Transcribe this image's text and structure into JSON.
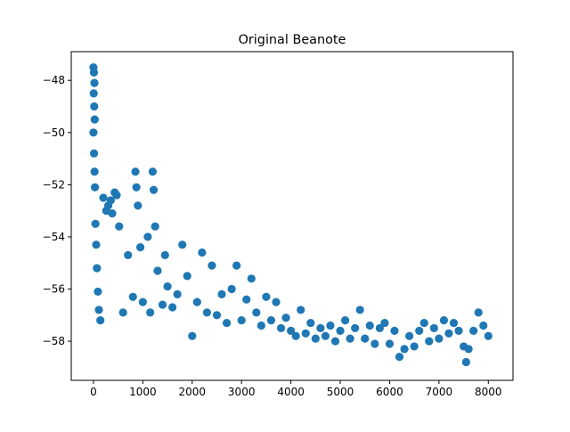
{
  "chart_data": {
    "type": "scatter",
    "title": "Original Beanote",
    "xlabel": "",
    "ylabel": "",
    "xlim": [
      -450,
      8500
    ],
    "ylim": [
      -59.5,
      -46.9
    ],
    "x_ticks": [
      0,
      1000,
      2000,
      3000,
      4000,
      5000,
      6000,
      7000,
      8000
    ],
    "x_tick_labels": [
      "0",
      "1000",
      "2000",
      "3000",
      "4000",
      "5000",
      "6000",
      "7000",
      "8000"
    ],
    "y_ticks": [
      -58,
      -56,
      -54,
      -52,
      -50,
      -48
    ],
    "y_tick_labels": [
      "−58",
      "−56",
      "−54",
      "−52",
      "−50",
      "−48"
    ],
    "grid": false,
    "legend": "none",
    "marker_color": "#1f77b4",
    "series": [
      {
        "points": [
          [
            0,
            -47.5
          ],
          [
            10,
            -47.7
          ],
          [
            20,
            -48.1
          ],
          [
            5,
            -48.5
          ],
          [
            15,
            -49.0
          ],
          [
            25,
            -49.5
          ],
          [
            0,
            -50.0
          ],
          [
            12,
            -50.8
          ],
          [
            22,
            -51.5
          ],
          [
            30,
            -52.1
          ],
          [
            40,
            -53.5
          ],
          [
            55,
            -54.3
          ],
          [
            70,
            -55.2
          ],
          [
            90,
            -56.1
          ],
          [
            110,
            -56.8
          ],
          [
            140,
            -57.2
          ],
          [
            200,
            -52.5
          ],
          [
            260,
            -53.0
          ],
          [
            300,
            -52.8
          ],
          [
            350,
            -52.6
          ],
          [
            380,
            -53.1
          ],
          [
            430,
            -52.3
          ],
          [
            470,
            -52.4
          ],
          [
            520,
            -53.6
          ],
          [
            600,
            -56.9
          ],
          [
            700,
            -54.7
          ],
          [
            800,
            -56.3
          ],
          [
            850,
            -51.5
          ],
          [
            870,
            -52.1
          ],
          [
            900,
            -52.8
          ],
          [
            950,
            -54.4
          ],
          [
            1000,
            -56.5
          ],
          [
            1100,
            -54.0
          ],
          [
            1150,
            -56.9
          ],
          [
            1200,
            -51.5
          ],
          [
            1220,
            -52.2
          ],
          [
            1250,
            -53.6
          ],
          [
            1300,
            -55.3
          ],
          [
            1400,
            -56.6
          ],
          [
            1450,
            -54.7
          ],
          [
            1500,
            -55.9
          ],
          [
            1600,
            -56.7
          ],
          [
            1700,
            -56.2
          ],
          [
            1800,
            -54.3
          ],
          [
            1900,
            -55.5
          ],
          [
            2000,
            -57.8
          ],
          [
            2100,
            -56.5
          ],
          [
            2200,
            -54.6
          ],
          [
            2300,
            -56.9
          ],
          [
            2400,
            -55.1
          ],
          [
            2500,
            -57.0
          ],
          [
            2600,
            -56.2
          ],
          [
            2700,
            -57.3
          ],
          [
            2800,
            -56.0
          ],
          [
            2900,
            -55.1
          ],
          [
            3000,
            -57.2
          ],
          [
            3100,
            -56.4
          ],
          [
            3200,
            -55.6
          ],
          [
            3300,
            -56.9
          ],
          [
            3400,
            -57.4
          ],
          [
            3500,
            -56.3
          ],
          [
            3600,
            -57.2
          ],
          [
            3700,
            -56.5
          ],
          [
            3800,
            -57.5
          ],
          [
            3900,
            -57.1
          ],
          [
            4000,
            -57.6
          ],
          [
            4100,
            -57.8
          ],
          [
            4200,
            -56.8
          ],
          [
            4300,
            -57.7
          ],
          [
            4400,
            -57.3
          ],
          [
            4500,
            -57.9
          ],
          [
            4600,
            -57.5
          ],
          [
            4700,
            -57.8
          ],
          [
            4800,
            -57.4
          ],
          [
            4900,
            -58.0
          ],
          [
            5000,
            -57.6
          ],
          [
            5100,
            -57.2
          ],
          [
            5200,
            -57.9
          ],
          [
            5300,
            -57.5
          ],
          [
            5400,
            -56.8
          ],
          [
            5500,
            -57.9
          ],
          [
            5600,
            -57.4
          ],
          [
            5700,
            -58.1
          ],
          [
            5800,
            -57.5
          ],
          [
            5900,
            -57.3
          ],
          [
            6000,
            -58.1
          ],
          [
            6100,
            -57.6
          ],
          [
            6200,
            -58.6
          ],
          [
            6300,
            -58.3
          ],
          [
            6400,
            -57.8
          ],
          [
            6500,
            -58.2
          ],
          [
            6600,
            -57.6
          ],
          [
            6700,
            -57.3
          ],
          [
            6800,
            -58.0
          ],
          [
            6900,
            -57.5
          ],
          [
            7000,
            -57.9
          ],
          [
            7100,
            -57.2
          ],
          [
            7200,
            -57.7
          ],
          [
            7300,
            -57.3
          ],
          [
            7400,
            -57.6
          ],
          [
            7500,
            -58.2
          ],
          [
            7550,
            -58.8
          ],
          [
            7600,
            -58.3
          ],
          [
            7700,
            -57.6
          ],
          [
            7800,
            -56.9
          ],
          [
            7900,
            -57.4
          ],
          [
            8000,
            -57.8
          ]
        ]
      }
    ]
  }
}
